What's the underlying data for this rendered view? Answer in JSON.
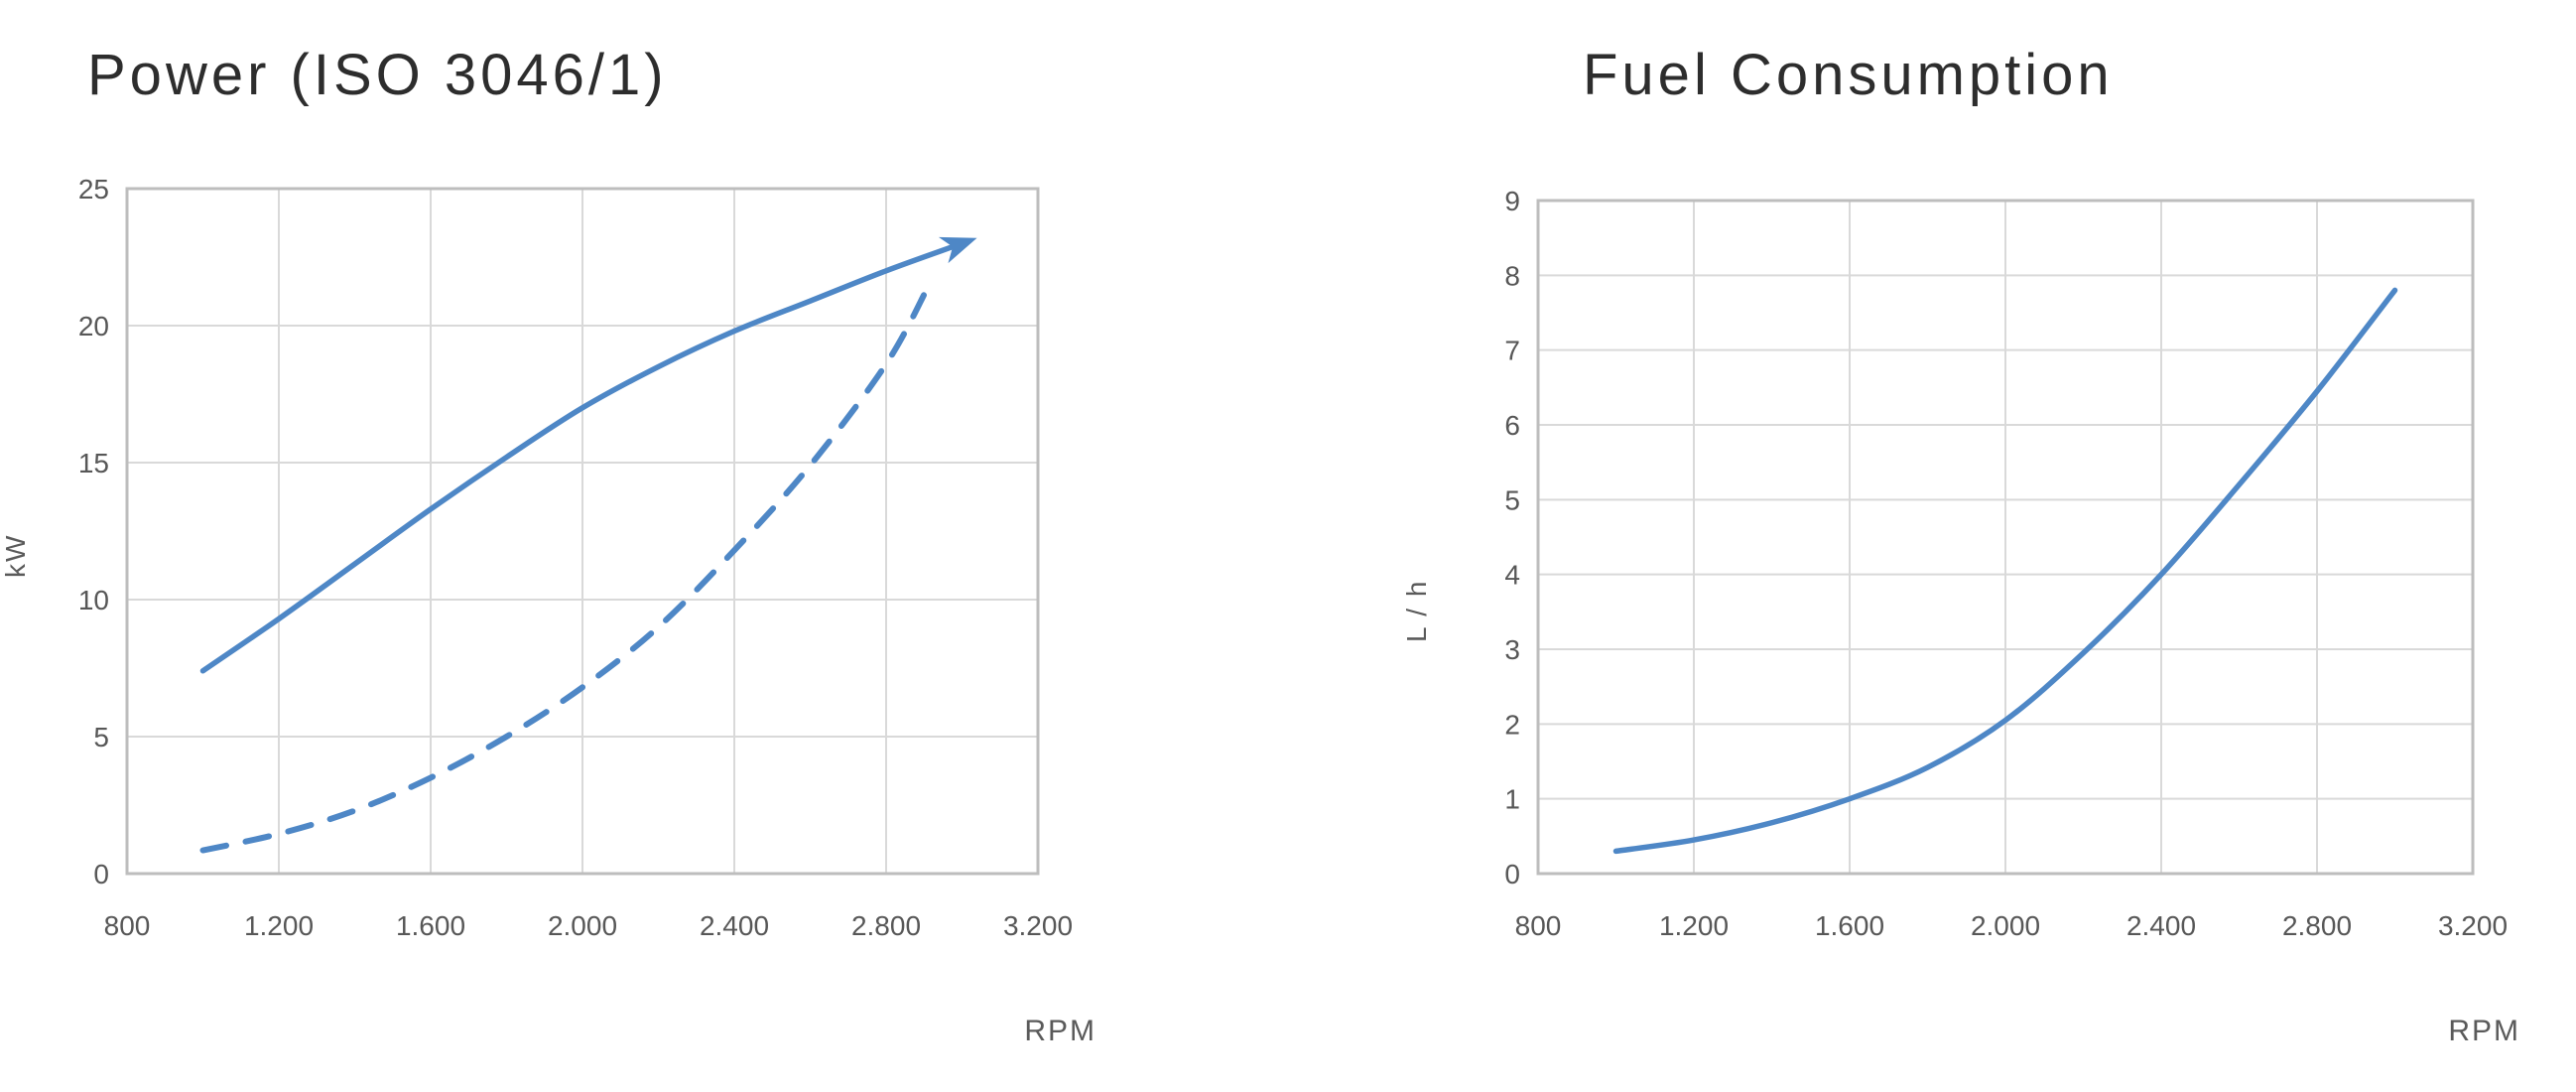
{
  "page": {
    "background": "#ffffff"
  },
  "theme": {
    "line_color": "#4e87c6",
    "grid_color": "#d9d9d9",
    "border_color": "#bdbdbd",
    "tick_text_color": "#575757",
    "title_text_color": "#2d2d2d"
  },
  "chart_data": [
    {
      "type": "line",
      "title": "Power (ISO 3046/1)",
      "xlabel": "RPM",
      "ylabel": "kW",
      "xlim": [
        800,
        3200
      ],
      "ylim": [
        0,
        25
      ],
      "grid": true,
      "legend": "none",
      "xticks": [
        {
          "v": 800,
          "label": "800"
        },
        {
          "v": 1200,
          "label": "1.200"
        },
        {
          "v": 1600,
          "label": "1.600"
        },
        {
          "v": 2000,
          "label": "2.000"
        },
        {
          "v": 2400,
          "label": "2.400"
        },
        {
          "v": 2800,
          "label": "2.800"
        },
        {
          "v": 3200,
          "label": "3.200"
        }
      ],
      "yticks": [
        {
          "v": 0,
          "label": "0"
        },
        {
          "v": 5,
          "label": "5"
        },
        {
          "v": 10,
          "label": "10"
        },
        {
          "v": 15,
          "label": "15"
        },
        {
          "v": 20,
          "label": "20"
        },
        {
          "v": 25,
          "label": "25"
        }
      ],
      "series": [
        {
          "name": "power-curve",
          "style": "solid",
          "arrow_end": true,
          "points": [
            [
              1000,
              7.4
            ],
            [
              1200,
              9.3
            ],
            [
              1400,
              11.3
            ],
            [
              1600,
              13.3
            ],
            [
              1800,
              15.2
            ],
            [
              2000,
              17.0
            ],
            [
              2200,
              18.5
            ],
            [
              2400,
              19.8
            ],
            [
              2600,
              20.9
            ],
            [
              2800,
              22.0
            ],
            [
              3000,
              23.0
            ]
          ]
        },
        {
          "name": "propeller-load-curve",
          "style": "dashed",
          "arrow_end": false,
          "points": [
            [
              1000,
              0.85
            ],
            [
              1200,
              1.45
            ],
            [
              1400,
              2.3
            ],
            [
              1600,
              3.5
            ],
            [
              1800,
              5.0
            ],
            [
              2000,
              6.8
            ],
            [
              2200,
              9.0
            ],
            [
              2400,
              11.8
            ],
            [
              2600,
              14.9
            ],
            [
              2800,
              18.6
            ],
            [
              2910,
              21.4
            ]
          ]
        }
      ]
    },
    {
      "type": "line",
      "title": "Fuel Consumption",
      "xlabel": "RPM",
      "ylabel": "L / h",
      "xlim": [
        800,
        3200
      ],
      "ylim": [
        0,
        9
      ],
      "grid": true,
      "legend": "none",
      "xticks": [
        {
          "v": 800,
          "label": "800"
        },
        {
          "v": 1200,
          "label": "1.200"
        },
        {
          "v": 1600,
          "label": "1.600"
        },
        {
          "v": 2000,
          "label": "2.000"
        },
        {
          "v": 2400,
          "label": "2.400"
        },
        {
          "v": 2800,
          "label": "2.800"
        },
        {
          "v": 3200,
          "label": "3.200"
        }
      ],
      "yticks": [
        {
          "v": 0,
          "label": "0"
        },
        {
          "v": 1,
          "label": "1"
        },
        {
          "v": 2,
          "label": "2"
        },
        {
          "v": 3,
          "label": "3"
        },
        {
          "v": 4,
          "label": "4"
        },
        {
          "v": 5,
          "label": "5"
        },
        {
          "v": 6,
          "label": "6"
        },
        {
          "v": 7,
          "label": "7"
        },
        {
          "v": 8,
          "label": "8"
        },
        {
          "v": 9,
          "label": "9"
        }
      ],
      "series": [
        {
          "name": "fuel-consumption-curve",
          "style": "solid",
          "arrow_end": false,
          "points": [
            [
              1000,
              0.3
            ],
            [
              1200,
              0.45
            ],
            [
              1400,
              0.68
            ],
            [
              1600,
              1.0
            ],
            [
              1800,
              1.42
            ],
            [
              2000,
              2.05
            ],
            [
              2200,
              2.95
            ],
            [
              2400,
              4.0
            ],
            [
              2600,
              5.2
            ],
            [
              2800,
              6.45
            ],
            [
              3000,
              7.8
            ]
          ]
        }
      ]
    }
  ]
}
